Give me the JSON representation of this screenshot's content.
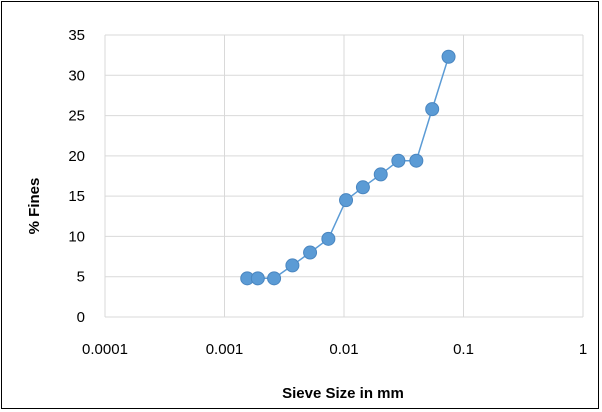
{
  "chart_data": {
    "type": "scatter",
    "title": "",
    "xlabel": "Sieve Size in mm",
    "ylabel": "% Fines",
    "x_scale": "log",
    "xlim": [
      0.0001,
      1
    ],
    "ylim": [
      0,
      35
    ],
    "x_tick_labels": [
      "0.0001",
      "0.001",
      "0.01",
      "0.1",
      "1"
    ],
    "y_tick_labels": [
      "0",
      "5",
      "10",
      "15",
      "20",
      "25",
      "30",
      "35"
    ],
    "grid": true,
    "legend": "none",
    "series_color": "#5B9BD5",
    "series": [
      {
        "x": [
          0.00155,
          0.0019,
          0.0026,
          0.0037,
          0.0052,
          0.0074,
          0.0104,
          0.0144,
          0.0203,
          0.0285,
          0.0403,
          0.0547,
          0.075
        ],
        "y": [
          4.8,
          4.8,
          4.8,
          6.4,
          8.0,
          9.7,
          14.5,
          16.1,
          17.7,
          19.4,
          19.4,
          25.8,
          32.3
        ]
      }
    ]
  }
}
